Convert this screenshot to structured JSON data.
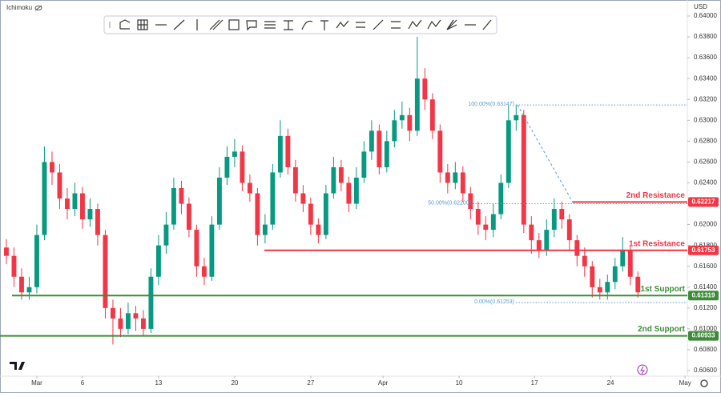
{
  "chart_data": {
    "type": "candlestick",
    "indicator": "Ichimoku",
    "currency": "USD",
    "up_color": "#089981",
    "down_color": "#f23645",
    "candles": [
      [
        0.6178,
        0.6186,
        0.6162,
        0.617
      ],
      [
        0.617,
        0.6178,
        0.614,
        0.615
      ],
      [
        0.615,
        0.6158,
        0.6128,
        0.6135
      ],
      [
        0.6135,
        0.615,
        0.6128,
        0.614
      ],
      [
        0.614,
        0.62,
        0.6134,
        0.619
      ],
      [
        0.619,
        0.6275,
        0.6185,
        0.626
      ],
      [
        0.626,
        0.627,
        0.6238,
        0.625
      ],
      [
        0.625,
        0.6258,
        0.6215,
        0.6225
      ],
      [
        0.6225,
        0.6235,
        0.6205,
        0.6215
      ],
      [
        0.6215,
        0.624,
        0.6208,
        0.623
      ],
      [
        0.623,
        0.6236,
        0.6196,
        0.6205
      ],
      [
        0.6205,
        0.6225,
        0.6198,
        0.6215
      ],
      [
        0.6215,
        0.622,
        0.618,
        0.619
      ],
      [
        0.619,
        0.6195,
        0.611,
        0.612
      ],
      [
        0.612,
        0.6128,
        0.6085,
        0.611
      ],
      [
        0.611,
        0.612,
        0.6092,
        0.61
      ],
      [
        0.61,
        0.6125,
        0.6095,
        0.6115
      ],
      [
        0.6115,
        0.6122,
        0.6098,
        0.611
      ],
      [
        0.611,
        0.6118,
        0.6094,
        0.61
      ],
      [
        0.61,
        0.6158,
        0.6096,
        0.615
      ],
      [
        0.615,
        0.619,
        0.6142,
        0.618
      ],
      [
        0.618,
        0.6212,
        0.6172,
        0.62
      ],
      [
        0.62,
        0.6245,
        0.6195,
        0.6235
      ],
      [
        0.6235,
        0.6242,
        0.621,
        0.622
      ],
      [
        0.622,
        0.6226,
        0.6188,
        0.6195
      ],
      [
        0.6195,
        0.62,
        0.615,
        0.616
      ],
      [
        0.616,
        0.6168,
        0.6142,
        0.615
      ],
      [
        0.615,
        0.6208,
        0.6146,
        0.62
      ],
      [
        0.62,
        0.6255,
        0.6195,
        0.6245
      ],
      [
        0.6245,
        0.6275,
        0.6238,
        0.6265
      ],
      [
        0.6265,
        0.6282,
        0.6255,
        0.627
      ],
      [
        0.627,
        0.6276,
        0.6232,
        0.624
      ],
      [
        0.624,
        0.6248,
        0.6222,
        0.623
      ],
      [
        0.623,
        0.6235,
        0.618,
        0.619
      ],
      [
        0.619,
        0.621,
        0.6182,
        0.62
      ],
      [
        0.62,
        0.6258,
        0.6195,
        0.625
      ],
      [
        0.625,
        0.63,
        0.6245,
        0.6285
      ],
      [
        0.6285,
        0.6292,
        0.6248,
        0.6255
      ],
      [
        0.6255,
        0.6262,
        0.6222,
        0.623
      ],
      [
        0.623,
        0.6238,
        0.6212,
        0.622
      ],
      [
        0.622,
        0.6226,
        0.619,
        0.62
      ],
      [
        0.62,
        0.6206,
        0.6182,
        0.619
      ],
      [
        0.619,
        0.6238,
        0.6186,
        0.623
      ],
      [
        0.623,
        0.6265,
        0.6225,
        0.6255
      ],
      [
        0.6255,
        0.6262,
        0.6232,
        0.624
      ],
      [
        0.624,
        0.6246,
        0.6212,
        0.622
      ],
      [
        0.622,
        0.6255,
        0.6215,
        0.6245
      ],
      [
        0.6245,
        0.628,
        0.624,
        0.627
      ],
      [
        0.627,
        0.63,
        0.6262,
        0.629
      ],
      [
        0.629,
        0.6296,
        0.6248,
        0.6255
      ],
      [
        0.6255,
        0.629,
        0.625,
        0.628
      ],
      [
        0.628,
        0.631,
        0.6274,
        0.63
      ],
      [
        0.63,
        0.6318,
        0.6292,
        0.6305
      ],
      [
        0.6305,
        0.6312,
        0.628,
        0.629
      ],
      [
        0.629,
        0.638,
        0.6285,
        0.634
      ],
      [
        0.634,
        0.635,
        0.631,
        0.632
      ],
      [
        0.632,
        0.6326,
        0.6282,
        0.629
      ],
      [
        0.629,
        0.6296,
        0.624,
        0.625
      ],
      [
        0.625,
        0.6258,
        0.623,
        0.624
      ],
      [
        0.624,
        0.626,
        0.6234,
        0.625
      ],
      [
        0.625,
        0.6256,
        0.6222,
        0.623
      ],
      [
        0.623,
        0.6236,
        0.6205,
        0.6215
      ],
      [
        0.6215,
        0.6222,
        0.619,
        0.62
      ],
      [
        0.62,
        0.6208,
        0.6185,
        0.6195
      ],
      [
        0.6195,
        0.622,
        0.6188,
        0.621
      ],
      [
        0.621,
        0.6248,
        0.6205,
        0.624
      ],
      [
        0.624,
        0.6315,
        0.6235,
        0.63
      ],
      [
        0.63,
        0.6315,
        0.629,
        0.6305
      ],
      [
        0.6305,
        0.631,
        0.6192,
        0.62
      ],
      [
        0.62,
        0.6208,
        0.6172,
        0.6185
      ],
      [
        0.6185,
        0.6192,
        0.6168,
        0.6175
      ],
      [
        0.6175,
        0.6205,
        0.617,
        0.6195
      ],
      [
        0.6195,
        0.6225,
        0.6188,
        0.6215
      ],
      [
        0.6215,
        0.6222,
        0.6196,
        0.6205
      ],
      [
        0.6205,
        0.621,
        0.6175,
        0.6185
      ],
      [
        0.6185,
        0.619,
        0.616,
        0.617
      ],
      [
        0.617,
        0.6178,
        0.615,
        0.616
      ],
      [
        0.616,
        0.6165,
        0.613,
        0.614
      ],
      [
        0.614,
        0.6148,
        0.6128,
        0.6135
      ],
      [
        0.6135,
        0.6152,
        0.6128,
        0.6145
      ],
      [
        0.6145,
        0.6168,
        0.6138,
        0.616
      ],
      [
        0.616,
        0.6188,
        0.6155,
        0.6175
      ],
      [
        0.6175,
        0.618,
        0.6142,
        0.615
      ],
      [
        0.615,
        0.6155,
        0.613,
        0.6135
      ]
    ],
    "xlim": [
      -0.84,
      89.5
    ],
    "xticks": [
      {
        "value": 4,
        "label": "Mar"
      },
      {
        "value": 10,
        "label": "6"
      },
      {
        "value": 20,
        "label": "13"
      },
      {
        "value": 30,
        "label": "20"
      },
      {
        "value": 40,
        "label": "27"
      },
      {
        "value": 49.5,
        "label": "Apr"
      },
      {
        "value": 59.5,
        "label": "10"
      },
      {
        "value": 69.4,
        "label": "17"
      },
      {
        "value": 79.4,
        "label": "24"
      },
      {
        "value": 89.2,
        "label": "May"
      }
    ],
    "ylim": [
      0.6055,
      0.6405
    ],
    "yticks": [
      {
        "value": 0.64,
        "label": "0.64000"
      },
      {
        "value": 0.638,
        "label": "0.63800"
      },
      {
        "value": 0.636,
        "label": "0.63600"
      },
      {
        "value": 0.634,
        "label": "0.63400"
      },
      {
        "value": 0.632,
        "label": "0.63200"
      },
      {
        "value": 0.63,
        "label": "0.63000"
      },
      {
        "value": 0.628,
        "label": "0.62800"
      },
      {
        "value": 0.626,
        "label": "0.62600"
      },
      {
        "value": 0.624,
        "label": "0.62400"
      },
      {
        "value": 0.622,
        "label": "0.62200"
      },
      {
        "value": 0.62,
        "label": "0.62000"
      },
      {
        "value": 0.618,
        "label": "0.61800"
      },
      {
        "value": 0.616,
        "label": "0.61600"
      },
      {
        "value": 0.614,
        "label": "0.61400"
      },
      {
        "value": 0.612,
        "label": "0.61200"
      },
      {
        "value": 0.61,
        "label": "0.61000"
      },
      {
        "value": 0.608,
        "label": "0.60800"
      },
      {
        "value": 0.606,
        "label": "0.60600"
      }
    ],
    "levels": [
      {
        "name": "2nd Resistance",
        "value": 0.62217,
        "color": "#f23645"
      },
      {
        "name": "1st Resistance",
        "value": 0.61753,
        "color": "#f23645"
      },
      {
        "name": "1st Support",
        "value": 0.61319,
        "color": "#3d8b37"
      },
      {
        "name": "2nd Support",
        "value": 0.60933,
        "color": "#3d8b37"
      }
    ],
    "fib": [
      {
        "value": 0.63147,
        "label": "100.00%(0.63147)"
      },
      {
        "value": 0.622,
        "label": "50.00%(0.62200)"
      },
      {
        "value": 0.61253,
        "label": "0.00%(0.61253)"
      }
    ],
    "fib_color": "#5b9bd5"
  }
}
